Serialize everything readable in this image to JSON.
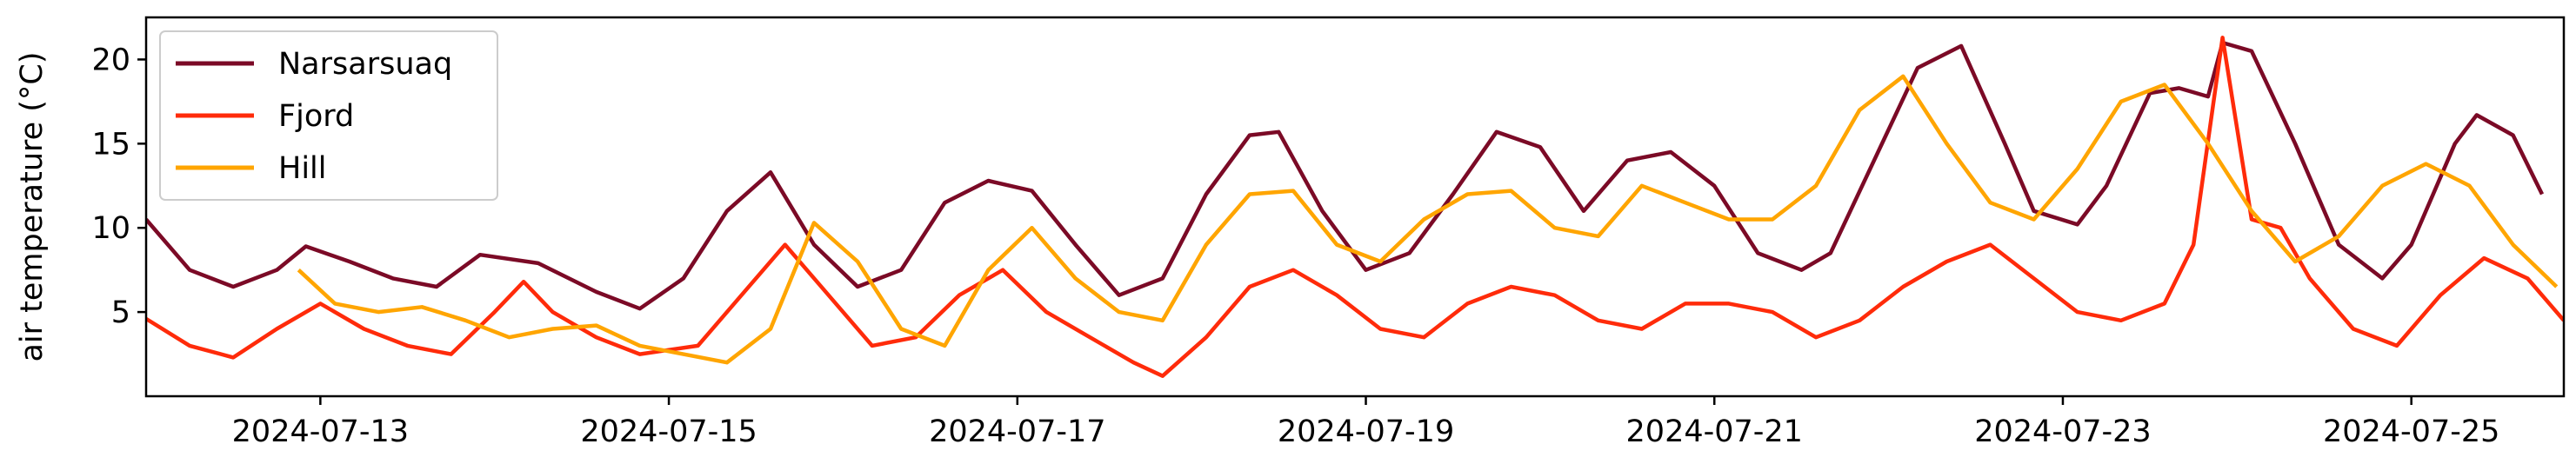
{
  "chart_data": {
    "type": "line",
    "title": "",
    "xlabel": "",
    "ylabel": "air temperature (°C)",
    "xlim": [
      "2024-07-12 00:00",
      "2024-07-25 21:00"
    ],
    "ylim": [
      0,
      22.5
    ],
    "x_ticks": [
      "2024-07-13",
      "2024-07-15",
      "2024-07-17",
      "2024-07-19",
      "2024-07-21",
      "2024-07-23",
      "2024-07-25"
    ],
    "y_ticks": [
      5,
      10,
      15,
      20
    ],
    "grid": false,
    "legend_position": "top-left",
    "series": [
      {
        "name": "Narsarsuaq",
        "color": "#7b0a26",
        "points": [
          [
            "2024-07-12 00:00",
            10.5
          ],
          [
            "2024-07-12 06:00",
            7.5
          ],
          [
            "2024-07-12 12:00",
            6.5
          ],
          [
            "2024-07-12 18:00",
            7.5
          ],
          [
            "2024-07-12 22:00",
            8.9
          ],
          [
            "2024-07-13 04:00",
            8.0
          ],
          [
            "2024-07-13 10:00",
            7.0
          ],
          [
            "2024-07-13 16:00",
            6.5
          ],
          [
            "2024-07-13 22:00",
            8.4
          ],
          [
            "2024-07-14 06:00",
            7.9
          ],
          [
            "2024-07-14 14:00",
            6.2
          ],
          [
            "2024-07-14 20:00",
            5.2
          ],
          [
            "2024-07-15 02:00",
            7.0
          ],
          [
            "2024-07-15 08:00",
            11.0
          ],
          [
            "2024-07-15 14:00",
            13.3
          ],
          [
            "2024-07-15 20:00",
            9.0
          ],
          [
            "2024-07-16 02:00",
            6.5
          ],
          [
            "2024-07-16 08:00",
            7.5
          ],
          [
            "2024-07-16 14:00",
            11.5
          ],
          [
            "2024-07-16 20:00",
            12.8
          ],
          [
            "2024-07-17 02:00",
            12.2
          ],
          [
            "2024-07-17 08:00",
            9.0
          ],
          [
            "2024-07-17 14:00",
            6.0
          ],
          [
            "2024-07-17 20:00",
            7.0
          ],
          [
            "2024-07-18 02:00",
            12.0
          ],
          [
            "2024-07-18 08:00",
            15.5
          ],
          [
            "2024-07-18 12:00",
            15.7
          ],
          [
            "2024-07-18 18:00",
            11.0
          ],
          [
            "2024-07-19 00:00",
            7.5
          ],
          [
            "2024-07-19 06:00",
            8.5
          ],
          [
            "2024-07-19 12:00",
            12.0
          ],
          [
            "2024-07-19 18:00",
            15.7
          ],
          [
            "2024-07-20 00:00",
            14.8
          ],
          [
            "2024-07-20 06:00",
            11.0
          ],
          [
            "2024-07-20 12:00",
            14.0
          ],
          [
            "2024-07-20 18:00",
            14.5
          ],
          [
            "2024-07-21 00:00",
            12.5
          ],
          [
            "2024-07-21 06:00",
            8.5
          ],
          [
            "2024-07-21 12:00",
            7.5
          ],
          [
            "2024-07-21 16:00",
            8.5
          ],
          [
            "2024-07-21 22:00",
            14.0
          ],
          [
            "2024-07-22 04:00",
            19.5
          ],
          [
            "2024-07-22 10:00",
            20.8
          ],
          [
            "2024-07-22 16:00",
            15.0
          ],
          [
            "2024-07-22 20:00",
            11.0
          ],
          [
            "2024-07-23 02:00",
            10.2
          ],
          [
            "2024-07-23 06:00",
            12.5
          ],
          [
            "2024-07-23 12:00",
            18.0
          ],
          [
            "2024-07-23 16:00",
            18.3
          ],
          [
            "2024-07-23 20:00",
            17.8
          ],
          [
            "2024-07-23 22:00",
            21.0
          ],
          [
            "2024-07-24 02:00",
            20.5
          ],
          [
            "2024-07-24 08:00",
            15.0
          ],
          [
            "2024-07-24 14:00",
            9.0
          ],
          [
            "2024-07-24 20:00",
            7.0
          ],
          [
            "2024-07-25 00:00",
            9.0
          ],
          [
            "2024-07-25 06:00",
            15.0
          ],
          [
            "2024-07-25 09:00",
            16.7
          ],
          [
            "2024-07-25 14:00",
            15.5
          ],
          [
            "2024-07-25 18:00",
            12.0
          ]
        ]
      },
      {
        "name": "Fjord",
        "color": "#ff2b0a",
        "points": [
          [
            "2024-07-12 00:00",
            4.6
          ],
          [
            "2024-07-12 06:00",
            3.0
          ],
          [
            "2024-07-12 12:00",
            2.3
          ],
          [
            "2024-07-12 18:00",
            4.0
          ],
          [
            "2024-07-13 00:00",
            5.5
          ],
          [
            "2024-07-13 06:00",
            4.0
          ],
          [
            "2024-07-13 12:00",
            3.0
          ],
          [
            "2024-07-13 18:00",
            2.5
          ],
          [
            "2024-07-14 00:00",
            5.0
          ],
          [
            "2024-07-14 04:00",
            6.8
          ],
          [
            "2024-07-14 08:00",
            5.0
          ],
          [
            "2024-07-14 14:00",
            3.5
          ],
          [
            "2024-07-14 20:00",
            2.5
          ],
          [
            "2024-07-15 04:00",
            3.0
          ],
          [
            "2024-07-15 10:00",
            6.0
          ],
          [
            "2024-07-15 16:00",
            9.0
          ],
          [
            "2024-07-15 22:00",
            6.0
          ],
          [
            "2024-07-16 04:00",
            3.0
          ],
          [
            "2024-07-16 10:00",
            3.5
          ],
          [
            "2024-07-16 16:00",
            6.0
          ],
          [
            "2024-07-16 22:00",
            7.5
          ],
          [
            "2024-07-17 04:00",
            5.0
          ],
          [
            "2024-07-17 10:00",
            3.5
          ],
          [
            "2024-07-17 16:00",
            2.0
          ],
          [
            "2024-07-17 20:00",
            1.2
          ],
          [
            "2024-07-18 02:00",
            3.5
          ],
          [
            "2024-07-18 08:00",
            6.5
          ],
          [
            "2024-07-18 14:00",
            7.5
          ],
          [
            "2024-07-18 20:00",
            6.0
          ],
          [
            "2024-07-19 02:00",
            4.0
          ],
          [
            "2024-07-19 08:00",
            3.5
          ],
          [
            "2024-07-19 14:00",
            5.5
          ],
          [
            "2024-07-19 20:00",
            6.5
          ],
          [
            "2024-07-20 02:00",
            6.0
          ],
          [
            "2024-07-20 08:00",
            4.5
          ],
          [
            "2024-07-20 14:00",
            4.0
          ],
          [
            "2024-07-20 20:00",
            5.5
          ],
          [
            "2024-07-21 02:00",
            5.5
          ],
          [
            "2024-07-21 08:00",
            5.0
          ],
          [
            "2024-07-21 14:00",
            3.5
          ],
          [
            "2024-07-21 20:00",
            4.5
          ],
          [
            "2024-07-22 02:00",
            6.5
          ],
          [
            "2024-07-22 08:00",
            8.0
          ],
          [
            "2024-07-22 14:00",
            9.0
          ],
          [
            "2024-07-22 20:00",
            7.0
          ],
          [
            "2024-07-23 02:00",
            5.0
          ],
          [
            "2024-07-23 08:00",
            4.5
          ],
          [
            "2024-07-23 14:00",
            5.5
          ],
          [
            "2024-07-23 18:00",
            9.0
          ],
          [
            "2024-07-23 22:00",
            21.3
          ],
          [
            "2024-07-24 02:00",
            10.5
          ],
          [
            "2024-07-24 06:00",
            10.0
          ],
          [
            "2024-07-24 10:00",
            7.0
          ],
          [
            "2024-07-24 16:00",
            4.0
          ],
          [
            "2024-07-24 22:00",
            3.0
          ],
          [
            "2024-07-25 04:00",
            6.0
          ],
          [
            "2024-07-25 10:00",
            8.2
          ],
          [
            "2024-07-25 16:00",
            7.0
          ],
          [
            "2024-07-25 21:00",
            4.5
          ]
        ]
      },
      {
        "name": "Hill",
        "color": "#ffa500",
        "points": [
          [
            "2024-07-12 21:00",
            7.5
          ],
          [
            "2024-07-13 02:00",
            5.5
          ],
          [
            "2024-07-13 08:00",
            5.0
          ],
          [
            "2024-07-13 14:00",
            5.3
          ],
          [
            "2024-07-13 20:00",
            4.5
          ],
          [
            "2024-07-14 02:00",
            3.5
          ],
          [
            "2024-07-14 08:00",
            4.0
          ],
          [
            "2024-07-14 14:00",
            4.2
          ],
          [
            "2024-07-14 20:00",
            3.0
          ],
          [
            "2024-07-15 02:00",
            2.5
          ],
          [
            "2024-07-15 08:00",
            2.0
          ],
          [
            "2024-07-15 14:00",
            4.0
          ],
          [
            "2024-07-15 20:00",
            10.3
          ],
          [
            "2024-07-16 02:00",
            8.0
          ],
          [
            "2024-07-16 08:00",
            4.0
          ],
          [
            "2024-07-16 14:00",
            3.0
          ],
          [
            "2024-07-16 20:00",
            7.5
          ],
          [
            "2024-07-17 02:00",
            10.0
          ],
          [
            "2024-07-17 08:00",
            7.0
          ],
          [
            "2024-07-17 14:00",
            5.0
          ],
          [
            "2024-07-17 20:00",
            4.5
          ],
          [
            "2024-07-18 02:00",
            9.0
          ],
          [
            "2024-07-18 08:00",
            12.0
          ],
          [
            "2024-07-18 14:00",
            12.2
          ],
          [
            "2024-07-18 20:00",
            9.0
          ],
          [
            "2024-07-19 02:00",
            8.0
          ],
          [
            "2024-07-19 08:00",
            10.5
          ],
          [
            "2024-07-19 14:00",
            12.0
          ],
          [
            "2024-07-19 20:00",
            12.2
          ],
          [
            "2024-07-20 02:00",
            10.0
          ],
          [
            "2024-07-20 08:00",
            9.5
          ],
          [
            "2024-07-20 14:00",
            12.5
          ],
          [
            "2024-07-20 20:00",
            11.5
          ],
          [
            "2024-07-21 02:00",
            10.5
          ],
          [
            "2024-07-21 08:00",
            10.5
          ],
          [
            "2024-07-21 14:00",
            12.5
          ],
          [
            "2024-07-21 20:00",
            17.0
          ],
          [
            "2024-07-22 02:00",
            19.0
          ],
          [
            "2024-07-22 08:00",
            15.0
          ],
          [
            "2024-07-22 14:00",
            11.5
          ],
          [
            "2024-07-22 20:00",
            10.5
          ],
          [
            "2024-07-23 02:00",
            13.5
          ],
          [
            "2024-07-23 08:00",
            17.5
          ],
          [
            "2024-07-23 14:00",
            18.5
          ],
          [
            "2024-07-23 20:00",
            15.0
          ],
          [
            "2024-07-24 02:00",
            11.0
          ],
          [
            "2024-07-24 08:00",
            8.0
          ],
          [
            "2024-07-24 14:00",
            9.5
          ],
          [
            "2024-07-24 20:00",
            12.5
          ],
          [
            "2024-07-25 02:00",
            13.8
          ],
          [
            "2024-07-25 08:00",
            12.5
          ],
          [
            "2024-07-25 14:00",
            9.0
          ],
          [
            "2024-07-25 20:00",
            6.5
          ]
        ]
      }
    ]
  }
}
